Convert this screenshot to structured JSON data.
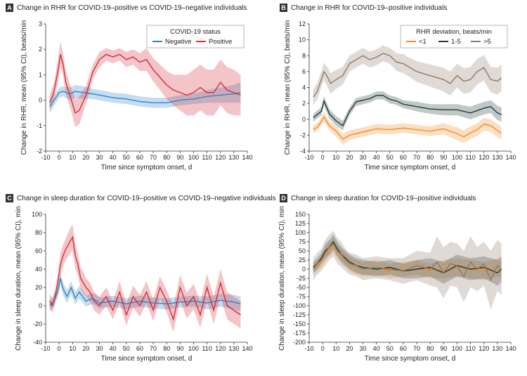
{
  "figure": {
    "panels": [
      "A",
      "B",
      "C",
      "D"
    ]
  },
  "colors": {
    "negative": "#2f86c6",
    "positive": "#d42e3a",
    "dev_lt1": "#f28c28",
    "dev_1_5": "#1f3b3a",
    "dev_gt5": "#8c7b68"
  },
  "chart_data": [
    {
      "panel": "A",
      "type": "line",
      "title": "Change in RHR for COVID-19–positive vs COVID-19–negative individuals",
      "xlabel": "Time since symptom onset, d",
      "ylabel": "Change in RHR, mean (95% CI), beats/min",
      "xlim": [
        -10,
        140
      ],
      "ylim": [
        -2,
        3
      ],
      "xticks": [
        -10,
        0,
        10,
        20,
        30,
        40,
        50,
        60,
        70,
        80,
        90,
        100,
        110,
        120,
        130,
        140
      ],
      "yticks": [
        -2,
        -1,
        0,
        1,
        2,
        3
      ],
      "legend": {
        "title": "COVID-19 status",
        "position": "top-right"
      },
      "series": [
        {
          "name": "Negative",
          "color": "#2f86c6",
          "x": [
            -7,
            -3,
            0,
            3,
            8,
            12,
            18,
            25,
            30,
            40,
            50,
            60,
            70,
            80,
            90,
            100,
            110,
            120,
            130,
            135
          ],
          "y": [
            -0.25,
            0.05,
            0.3,
            0.35,
            0.25,
            0.35,
            0.3,
            0.25,
            0.2,
            0.1,
            0.05,
            -0.05,
            -0.1,
            -0.1,
            0.0,
            0.05,
            0.15,
            0.2,
            0.25,
            0.3
          ],
          "ci": [
            0.25,
            0.2,
            0.2,
            0.2,
            0.25,
            0.25,
            0.25,
            0.2,
            0.2,
            0.2,
            0.2,
            0.2,
            0.2,
            0.2,
            0.2,
            0.2,
            0.25,
            0.3,
            0.35,
            0.4
          ]
        },
        {
          "name": "Positive",
          "color": "#d42e3a",
          "x": [
            -7,
            -4,
            -1,
            1,
            3,
            5,
            8,
            12,
            15,
            20,
            25,
            30,
            35,
            40,
            45,
            50,
            55,
            60,
            65,
            70,
            75,
            80,
            85,
            90,
            95,
            100,
            105,
            110,
            115,
            120,
            125,
            130,
            135
          ],
          "y": [
            -0.1,
            0.3,
            1.1,
            1.8,
            1.4,
            0.7,
            0.2,
            -0.5,
            -0.4,
            0.2,
            1.1,
            1.6,
            1.8,
            1.7,
            1.8,
            1.6,
            1.7,
            1.5,
            1.6,
            1.2,
            0.9,
            0.6,
            0.4,
            0.3,
            0.2,
            0.3,
            0.5,
            0.3,
            0.3,
            0.7,
            0.4,
            0.3,
            0.2
          ],
          "ci": [
            0.3,
            0.35,
            0.45,
            0.5,
            0.45,
            0.45,
            0.45,
            0.55,
            0.55,
            0.35,
            0.3,
            0.3,
            0.25,
            0.25,
            0.25,
            0.3,
            0.3,
            0.35,
            0.45,
            0.45,
            0.5,
            0.55,
            0.6,
            0.7,
            0.8,
            0.9,
            0.9,
            0.9,
            0.9,
            0.9,
            0.9,
            0.9,
            0.8
          ]
        }
      ]
    },
    {
      "panel": "B",
      "type": "line",
      "title": "Change in RHR for COVID-19–positive individuals",
      "xlabel": "Time since symptom onset, d",
      "ylabel": "Change in RHR, mean (95% CI), beats/min",
      "xlim": [
        -10,
        140
      ],
      "ylim": [
        -4,
        12
      ],
      "xticks": [
        -10,
        0,
        10,
        20,
        30,
        40,
        50,
        60,
        70,
        80,
        90,
        100,
        110,
        120,
        130,
        140
      ],
      "yticks": [
        -4,
        -2,
        0,
        2,
        4,
        6,
        8,
        10,
        12
      ],
      "legend": {
        "title": "RHR deviation, beats/min",
        "position": "top-right"
      },
      "series": [
        {
          "name": "<1",
          "color": "#f28c28",
          "x": [
            -7,
            -4,
            -1,
            1,
            5,
            10,
            15,
            20,
            30,
            40,
            50,
            60,
            70,
            80,
            90,
            100,
            105,
            110,
            115,
            120,
            125,
            130,
            133
          ],
          "y": [
            -1.3,
            -1.0,
            -0.3,
            0.3,
            -0.8,
            -1.5,
            -2.5,
            -2.0,
            -1.6,
            -1.2,
            -1.3,
            -1.1,
            -1.3,
            -1.5,
            -1.2,
            -1.8,
            -2.2,
            -1.7,
            -1.3,
            -0.6,
            -0.8,
            -1.4,
            -1.8
          ],
          "ci": [
            0.5,
            0.5,
            0.5,
            0.6,
            0.6,
            0.7,
            0.7,
            0.6,
            0.6,
            0.6,
            0.6,
            0.6,
            0.6,
            0.6,
            0.7,
            0.8,
            0.8,
            0.8,
            0.8,
            0.8,
            0.8,
            0.8,
            0.8
          ]
        },
        {
          "name": "1-5",
          "color": "#1f3b3a",
          "x": [
            -7,
            -4,
            -1,
            1,
            5,
            10,
            15,
            20,
            25,
            30,
            35,
            40,
            45,
            50,
            55,
            60,
            70,
            80,
            90,
            100,
            110,
            120,
            125,
            130,
            133
          ],
          "y": [
            0.2,
            0.6,
            1.0,
            2.3,
            0.7,
            -0.2,
            -0.8,
            1.0,
            2.2,
            2.4,
            2.6,
            3.0,
            3.0,
            2.5,
            2.3,
            1.9,
            1.6,
            1.3,
            1.2,
            1.2,
            0.8,
            1.4,
            1.6,
            0.8,
            0.6
          ],
          "ci": [
            0.5,
            0.5,
            0.5,
            0.6,
            0.6,
            0.6,
            0.6,
            0.5,
            0.5,
            0.5,
            0.5,
            0.5,
            0.5,
            0.5,
            0.5,
            0.5,
            0.6,
            0.6,
            0.7,
            0.7,
            0.8,
            0.8,
            0.8,
            0.9,
            0.9
          ]
        },
        {
          "name": ">5",
          "color": "#8c7b68",
          "x": [
            -7,
            -4,
            -1,
            1,
            3,
            6,
            10,
            15,
            20,
            25,
            30,
            35,
            40,
            45,
            50,
            55,
            60,
            65,
            70,
            80,
            90,
            95,
            100,
            105,
            110,
            115,
            120,
            125,
            130,
            133
          ],
          "y": [
            2.8,
            3.5,
            5.0,
            6.0,
            5.5,
            4.5,
            5.0,
            5.5,
            7.0,
            7.5,
            8.0,
            7.5,
            7.8,
            8.3,
            8.0,
            7.2,
            7.0,
            6.5,
            6.0,
            5.5,
            5.0,
            4.5,
            5.5,
            4.8,
            5.0,
            6.0,
            6.5,
            5.0,
            4.8,
            5.2
          ],
          "ci": [
            1.0,
            1.0,
            1.0,
            1.1,
            1.2,
            1.3,
            1.2,
            1.1,
            1.0,
            1.0,
            1.0,
            1.0,
            1.0,
            1.0,
            1.0,
            1.1,
            1.2,
            1.2,
            1.3,
            1.4,
            1.5,
            1.5,
            1.5,
            1.6,
            1.6,
            1.6,
            1.6,
            1.6,
            1.7,
            1.7
          ]
        }
      ]
    },
    {
      "panel": "C",
      "type": "line",
      "title": "Change in sleep duration for COVID-19–positive vs COVID-19–negative individuals",
      "xlabel": "Time since symptom onset, d",
      "ylabel": "Change in sleep duration, mean (95% CI), min",
      "xlim": [
        -10,
        140
      ],
      "ylim": [
        -40,
        100
      ],
      "xticks": [
        -10,
        0,
        10,
        20,
        30,
        40,
        50,
        60,
        70,
        80,
        90,
        100,
        110,
        120,
        130,
        140
      ],
      "yticks": [
        -40,
        -20,
        0,
        20,
        40,
        60,
        80,
        100
      ],
      "series": [
        {
          "name": "Negative",
          "color": "#2f86c6",
          "x": [
            -7,
            -4,
            -1,
            1,
            3,
            6,
            9,
            12,
            15,
            20,
            25,
            30,
            40,
            50,
            60,
            70,
            80,
            90,
            100,
            110,
            120,
            130,
            135
          ],
          "y": [
            0,
            5,
            15,
            30,
            18,
            10,
            20,
            8,
            15,
            5,
            8,
            3,
            5,
            2,
            5,
            3,
            2,
            4,
            5,
            3,
            6,
            4,
            2
          ],
          "ci": [
            6,
            6,
            6,
            7,
            7,
            7,
            7,
            7,
            7,
            6,
            6,
            6,
            6,
            6,
            6,
            6,
            6,
            6,
            6,
            7,
            7,
            8,
            8
          ]
        },
        {
          "name": "Positive",
          "color": "#d42e3a",
          "x": [
            -7,
            -5,
            -3,
            -1,
            1,
            3,
            5,
            8,
            10,
            12,
            14,
            16,
            18,
            20,
            23,
            26,
            30,
            35,
            40,
            45,
            50,
            55,
            60,
            65,
            70,
            75,
            80,
            85,
            90,
            95,
            100,
            105,
            110,
            115,
            120,
            125,
            130,
            135
          ],
          "y": [
            5,
            0,
            10,
            25,
            45,
            55,
            62,
            70,
            75,
            55,
            45,
            30,
            25,
            20,
            15,
            5,
            0,
            10,
            -5,
            15,
            -10,
            10,
            0,
            15,
            -5,
            20,
            5,
            -15,
            20,
            0,
            10,
            -10,
            20,
            -5,
            25,
            0,
            -5,
            -10
          ],
          "ci": [
            8,
            8,
            8,
            10,
            12,
            12,
            12,
            14,
            14,
            14,
            12,
            12,
            12,
            10,
            10,
            10,
            10,
            10,
            10,
            12,
            12,
            12,
            12,
            12,
            12,
            12,
            12,
            14,
            14,
            14,
            14,
            14,
            15,
            15,
            15,
            15,
            15,
            15
          ]
        }
      ]
    },
    {
      "panel": "D",
      "type": "line",
      "title": "Change in sleep duration for COVID-19–positive individuals",
      "xlabel": "Time since symptom onset, d",
      "ylabel": "Change in sleep duration, mean (95% CI), min",
      "xlim": [
        -10,
        140
      ],
      "ylim": [
        -200,
        150
      ],
      "xticks": [
        -10,
        0,
        10,
        20,
        30,
        40,
        50,
        60,
        70,
        80,
        90,
        100,
        110,
        120,
        130,
        140
      ],
      "yticks": [
        -200,
        -175,
        -150,
        -125,
        -100,
        -75,
        -50,
        -25,
        0,
        25,
        50,
        75,
        100,
        125,
        150
      ],
      "series": [
        {
          "name": "<1",
          "color": "#f28c28",
          "x": [
            -7,
            -4,
            -1,
            2,
            5,
            8,
            11,
            14,
            17,
            20,
            25,
            30,
            40,
            50,
            60,
            70,
            80,
            90,
            100,
            110,
            120,
            130,
            133
          ],
          "y": [
            0,
            10,
            20,
            40,
            55,
            65,
            50,
            35,
            25,
            15,
            5,
            0,
            5,
            -5,
            0,
            5,
            -5,
            0,
            5,
            0,
            -5,
            5,
            0
          ],
          "ci": [
            15,
            15,
            15,
            20,
            20,
            20,
            20,
            20,
            20,
            20,
            20,
            20,
            20,
            20,
            20,
            20,
            20,
            25,
            25,
            25,
            25,
            25,
            25
          ]
        },
        {
          "name": "1-5",
          "color": "#1f3b3a",
          "x": [
            -7,
            -4,
            -1,
            2,
            5,
            8,
            11,
            14,
            17,
            20,
            25,
            30,
            40,
            50,
            60,
            70,
            80,
            90,
            100,
            110,
            120,
            130,
            133
          ],
          "y": [
            5,
            15,
            30,
            50,
            60,
            75,
            55,
            40,
            30,
            20,
            10,
            5,
            0,
            5,
            -5,
            0,
            5,
            -10,
            10,
            0,
            5,
            -10,
            0
          ],
          "ci": [
            15,
            15,
            15,
            20,
            20,
            20,
            20,
            20,
            20,
            20,
            20,
            20,
            20,
            20,
            20,
            25,
            25,
            30,
            30,
            30,
            30,
            35,
            35
          ]
        },
        {
          "name": ">5",
          "color": "#8c7b68",
          "x": [
            -7,
            -4,
            -1,
            2,
            5,
            8,
            11,
            14,
            17,
            20,
            25,
            30,
            40,
            50,
            60,
            70,
            80,
            85,
            90,
            95,
            100,
            105,
            110,
            115,
            120,
            125,
            130,
            133
          ],
          "y": [
            0,
            15,
            25,
            45,
            60,
            70,
            50,
            40,
            25,
            15,
            10,
            0,
            5,
            0,
            -5,
            10,
            0,
            20,
            -10,
            15,
            10,
            -20,
            20,
            0,
            15,
            -30,
            10,
            0
          ],
          "ci": [
            30,
            30,
            30,
            35,
            35,
            35,
            35,
            35,
            30,
            30,
            30,
            30,
            30,
            30,
            35,
            40,
            45,
            70,
            70,
            60,
            60,
            70,
            70,
            60,
            60,
            80,
            70,
            70
          ]
        }
      ]
    }
  ]
}
